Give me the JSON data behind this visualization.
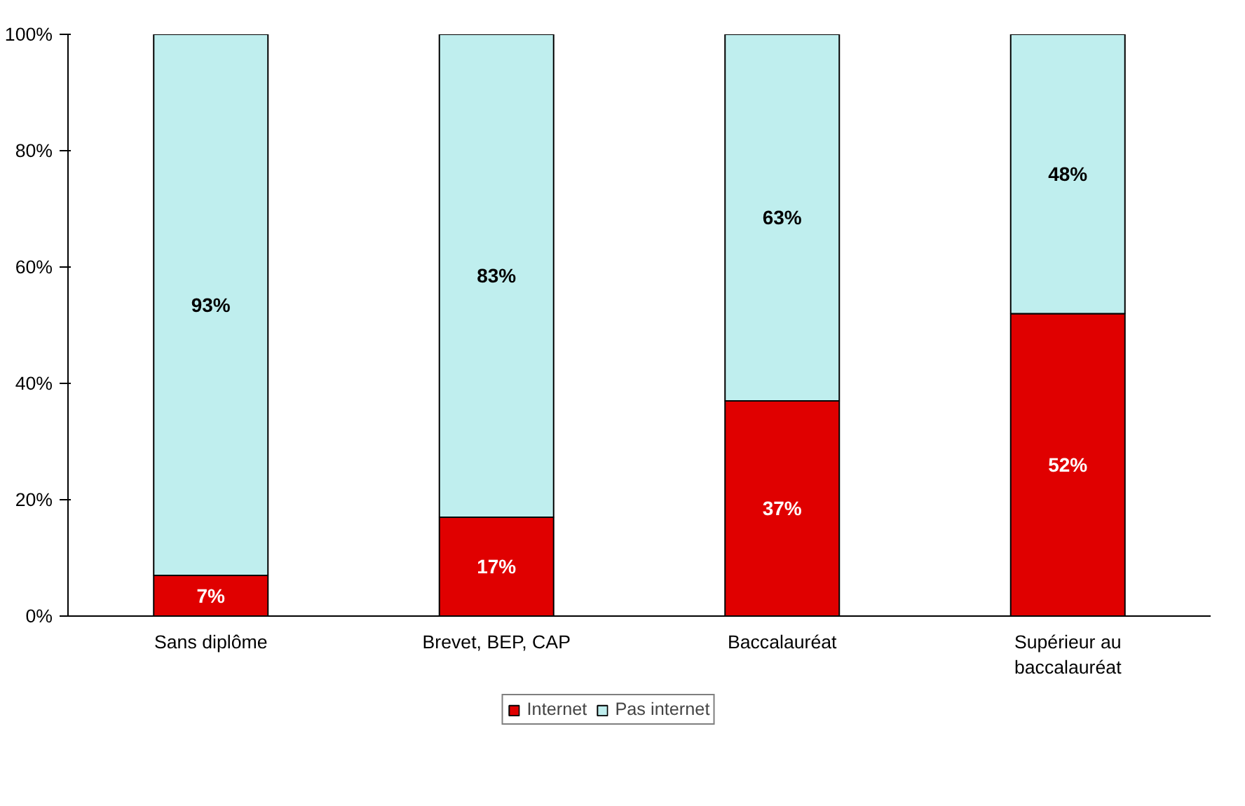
{
  "chart_data": {
    "type": "bar",
    "stacked": true,
    "categories": [
      "Sans diplôme",
      "Brevet, BEP, CAP",
      "Baccalauréat",
      "Supérieur au baccalauréat"
    ],
    "series": [
      {
        "name": "Internet",
        "color": "#e00000",
        "values": [
          7,
          17,
          37,
          52
        ],
        "value_labels": [
          "7%",
          "17%",
          "37%",
          "52%"
        ]
      },
      {
        "name": "Pas internet",
        "color": "#bfeeee",
        "values": [
          93,
          83,
          63,
          48
        ],
        "value_labels": [
          "93%",
          "83%",
          "63%",
          "48%"
        ]
      }
    ],
    "ylim": [
      0,
      100
    ],
    "yticks": [
      {
        "value": 0,
        "label": "0%"
      },
      {
        "value": 20,
        "label": "20%"
      },
      {
        "value": 40,
        "label": "40%"
      },
      {
        "value": 60,
        "label": "60%"
      },
      {
        "value": 80,
        "label": "80%"
      },
      {
        "value": 100,
        "label": "100%"
      }
    ],
    "grid": false,
    "legend": "bottom"
  }
}
